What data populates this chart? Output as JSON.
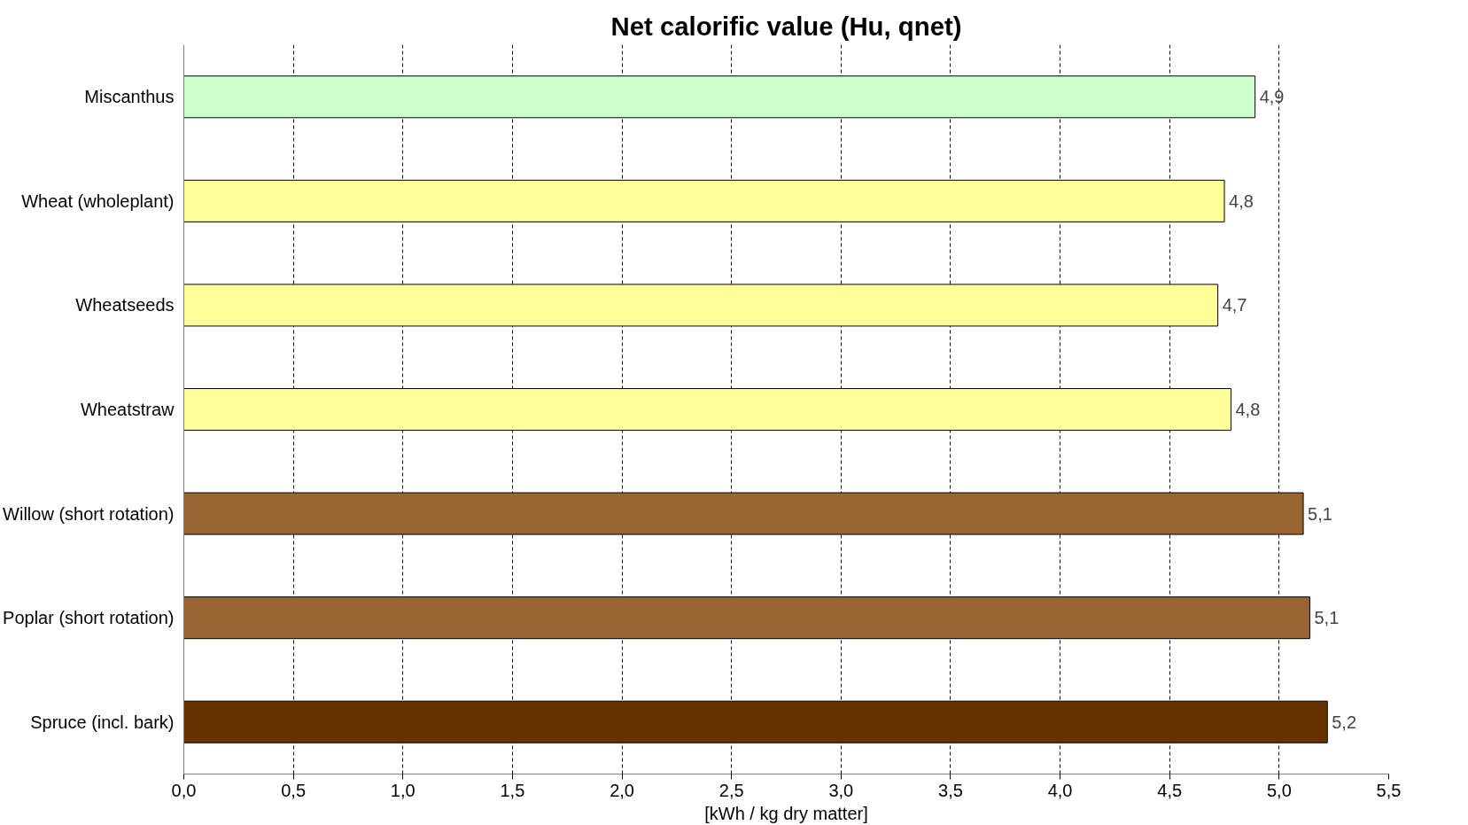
{
  "chart_data": {
    "type": "bar",
    "orientation": "horizontal",
    "title": "Net calorific value (Hu, qnet)",
    "xlabel": "[kWh / kg dry matter]",
    "categories": [
      "Miscanthus",
      "Wheat (wholeplant)",
      "Wheatseeds",
      "Wheatstraw",
      "Willow (short rotation)",
      "Poplar (short rotation)",
      "Spruce (incl. bark)"
    ],
    "values": [
      4.89,
      4.75,
      4.72,
      4.78,
      5.11,
      5.14,
      5.22
    ],
    "value_labels": [
      "4,9",
      "4,8",
      "4,7",
      "4,8",
      "5,1",
      "5,1",
      "5,2"
    ],
    "colors": [
      "#ccffcc",
      "#ffff99",
      "#ffff99",
      "#ffff99",
      "#996633",
      "#996633",
      "#663300"
    ],
    "xlim": [
      0,
      5.5
    ],
    "xticks": [
      {
        "value": 0,
        "label": "0,0"
      },
      {
        "value": 0.5,
        "label": "0,5"
      },
      {
        "value": 1,
        "label": "1,0"
      },
      {
        "value": 1.5,
        "label": "1,5"
      },
      {
        "value": 2,
        "label": "2,0"
      },
      {
        "value": 2.5,
        "label": "2,5"
      },
      {
        "value": 3,
        "label": "3,0"
      },
      {
        "value": 3.5,
        "label": "3,5"
      },
      {
        "value": 4,
        "label": "4,0"
      },
      {
        "value": 4.5,
        "label": "4,5"
      },
      {
        "value": 5,
        "label": "5,0"
      },
      {
        "value": 5.5,
        "label": "5,5"
      }
    ],
    "grid": "x"
  }
}
